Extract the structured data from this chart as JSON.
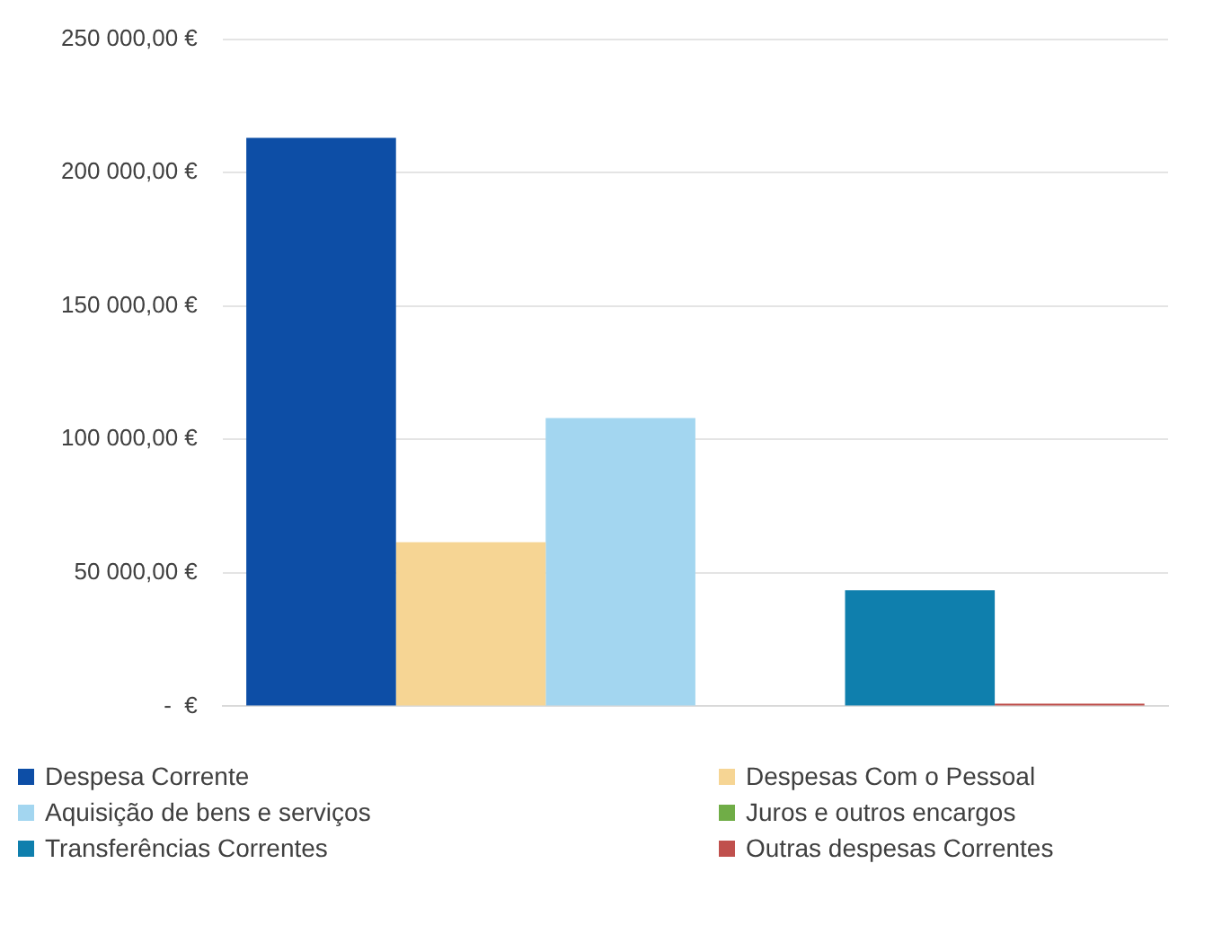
{
  "chart_data": {
    "type": "bar",
    "categories": [
      null
    ],
    "series": [
      {
        "name": "Despesa Corrente",
        "color": "#0d4ea6",
        "values": [
          213000
        ]
      },
      {
        "name": "Despesas Com o Pessoal",
        "color": "#f6d594",
        "values": [
          61500
        ]
      },
      {
        "name": "Aquisição de bens e serviços",
        "color": "#a3d6f0",
        "values": [
          108000
        ]
      },
      {
        "name": "Juros e outros encargos",
        "color": "#70ad47",
        "values": [
          0
        ]
      },
      {
        "name": "Transferências Correntes",
        "color": "#0f7fad",
        "values": [
          43500
        ]
      },
      {
        "name": "Outras despesas Correntes",
        "color": "#c0504d",
        "values": [
          1000
        ]
      }
    ],
    "ylim": [
      0,
      250000
    ],
    "yticks": [
      {
        "value": 0,
        "label": "-  €"
      },
      {
        "value": 50000,
        "label": "50 000,00 €"
      },
      {
        "value": 100000,
        "label": "100 000,00 €"
      },
      {
        "value": 150000,
        "label": "150 000,00 €"
      },
      {
        "value": 200000,
        "label": "200 000,00 €"
      },
      {
        "value": 250000,
        "label": "250 000,00 €"
      }
    ],
    "grid": "y",
    "legend": "bottom"
  }
}
